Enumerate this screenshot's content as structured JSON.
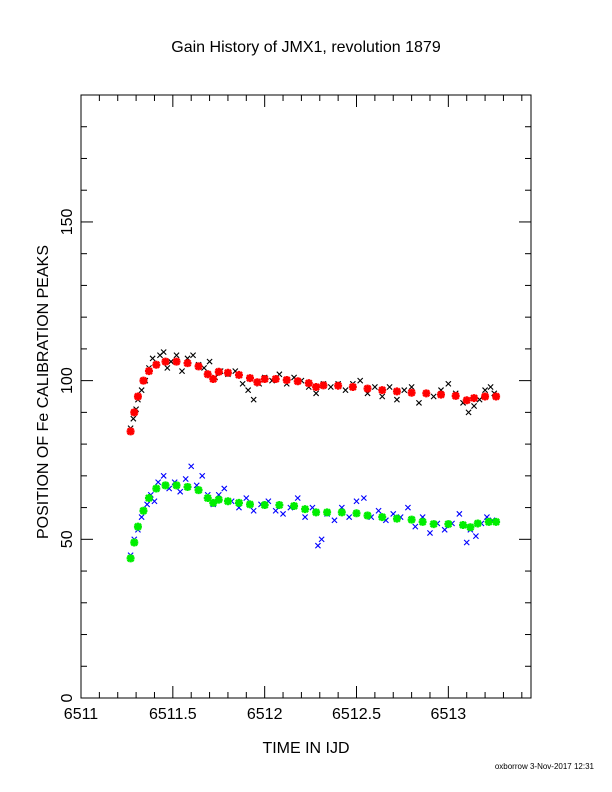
{
  "footer": "oxborrow 3-Nov-2017 12:31",
  "chart_data": {
    "type": "scatter",
    "title": "Gain History of JMX1, revolution 1879",
    "xlabel": "TIME IN IJD",
    "ylabel": "POSITION OF Fe CALIBRATION PEAKS",
    "xlim": [
      6511,
      6513.45
    ],
    "ylim": [
      0,
      190
    ],
    "xticks": [
      6511,
      6511.5,
      6512,
      6512.5,
      6513
    ],
    "xtick_labels": [
      "6511",
      "6511.5",
      "6512",
      "6512.5",
      "6513"
    ],
    "yticks": [
      0,
      50,
      100,
      150
    ],
    "ytick_labels": [
      "0",
      "50",
      "100",
      "150"
    ],
    "grid": false,
    "series": [
      {
        "marker": "x",
        "color": "#000000",
        "kind": "measured",
        "points": [
          [
            6511.27,
            85
          ],
          [
            6511.285,
            88
          ],
          [
            6511.3,
            91
          ],
          [
            6511.31,
            94
          ],
          [
            6511.33,
            97
          ],
          [
            6511.35,
            100
          ],
          [
            6511.37,
            104
          ],
          [
            6511.39,
            107
          ],
          [
            6511.41,
            105
          ],
          [
            6511.43,
            108
          ],
          [
            6511.45,
            109
          ],
          [
            6511.47,
            104
          ],
          [
            6511.49,
            106
          ],
          [
            6511.52,
            108
          ],
          [
            6511.55,
            103
          ],
          [
            6511.58,
            107
          ],
          [
            6511.61,
            108
          ],
          [
            6511.64,
            105
          ],
          [
            6511.67,
            104
          ],
          [
            6511.7,
            106
          ],
          [
            6511.73,
            101
          ],
          [
            6511.76,
            103
          ],
          [
            6511.8,
            102
          ],
          [
            6511.84,
            103
          ],
          [
            6511.88,
            99
          ],
          [
            6511.91,
            97
          ],
          [
            6511.94,
            94
          ],
          [
            6511.97,
            99
          ],
          [
            6512.0,
            101
          ],
          [
            6512.04,
            100
          ],
          [
            6512.08,
            102
          ],
          [
            6512.12,
            99
          ],
          [
            6512.16,
            101
          ],
          [
            6512.2,
            100
          ],
          [
            6512.24,
            98
          ],
          [
            6512.28,
            96
          ],
          [
            6512.32,
            99
          ],
          [
            6512.36,
            98
          ],
          [
            6512.4,
            99
          ],
          [
            6512.44,
            97
          ],
          [
            6512.48,
            99
          ],
          [
            6512.52,
            100
          ],
          [
            6512.56,
            96
          ],
          [
            6512.6,
            98
          ],
          [
            6512.64,
            95
          ],
          [
            6512.68,
            98
          ],
          [
            6512.72,
            94
          ],
          [
            6512.76,
            97
          ],
          [
            6512.8,
            98
          ],
          [
            6512.84,
            93
          ],
          [
            6512.88,
            96
          ],
          [
            6512.92,
            95
          ],
          [
            6512.96,
            97
          ],
          [
            6513.0,
            99
          ],
          [
            6513.04,
            96
          ],
          [
            6513.08,
            93
          ],
          [
            6513.11,
            90
          ],
          [
            6513.14,
            92
          ],
          [
            6513.17,
            94
          ],
          [
            6513.2,
            97
          ],
          [
            6513.23,
            98
          ],
          [
            6513.25,
            96
          ]
        ]
      },
      {
        "marker": "star",
        "color": "#ff0000",
        "kind": "fit",
        "points": [
          [
            6511.27,
            84
          ],
          [
            6511.29,
            90
          ],
          [
            6511.31,
            95
          ],
          [
            6511.34,
            100
          ],
          [
            6511.37,
            103
          ],
          [
            6511.41,
            105
          ],
          [
            6511.46,
            106
          ],
          [
            6511.52,
            106
          ],
          [
            6511.58,
            105.5
          ],
          [
            6511.64,
            104.5
          ],
          [
            6511.69,
            102
          ],
          [
            6511.72,
            100.5
          ],
          [
            6511.75,
            102.8
          ],
          [
            6511.8,
            102.5
          ],
          [
            6511.86,
            101.8
          ],
          [
            6511.92,
            100.8
          ],
          [
            6511.96,
            99.5
          ],
          [
            6512.0,
            100.5
          ],
          [
            6512.06,
            100.5
          ],
          [
            6512.12,
            100.2
          ],
          [
            6512.18,
            99.8
          ],
          [
            6512.24,
            99.2
          ],
          [
            6512.28,
            98
          ],
          [
            6512.32,
            98.5
          ],
          [
            6512.4,
            98.4
          ],
          [
            6512.48,
            98
          ],
          [
            6512.56,
            97.5
          ],
          [
            6512.64,
            97
          ],
          [
            6512.72,
            96.6
          ],
          [
            6512.8,
            96.2
          ],
          [
            6512.88,
            96
          ],
          [
            6512.96,
            95.6
          ],
          [
            6513.04,
            95.2
          ],
          [
            6513.1,
            93.8
          ],
          [
            6513.14,
            94.5
          ],
          [
            6513.2,
            95
          ],
          [
            6513.26,
            95
          ]
        ]
      },
      {
        "marker": "x",
        "color": "#0000ff",
        "kind": "measured",
        "points": [
          [
            6511.27,
            45
          ],
          [
            6511.29,
            50
          ],
          [
            6511.31,
            53
          ],
          [
            6511.33,
            57
          ],
          [
            6511.36,
            61
          ],
          [
            6511.38,
            64
          ],
          [
            6511.4,
            62
          ],
          [
            6511.42,
            68
          ],
          [
            6511.45,
            70
          ],
          [
            6511.48,
            66
          ],
          [
            6511.51,
            68
          ],
          [
            6511.54,
            65
          ],
          [
            6511.57,
            69
          ],
          [
            6511.6,
            73
          ],
          [
            6511.63,
            67
          ],
          [
            6511.66,
            70
          ],
          [
            6511.69,
            64
          ],
          [
            6511.72,
            61
          ],
          [
            6511.75,
            64
          ],
          [
            6511.78,
            66
          ],
          [
            6511.82,
            62
          ],
          [
            6511.86,
            60
          ],
          [
            6511.9,
            63
          ],
          [
            6511.94,
            59
          ],
          [
            6511.98,
            61
          ],
          [
            6512.02,
            62
          ],
          [
            6512.06,
            59
          ],
          [
            6512.1,
            58
          ],
          [
            6512.14,
            60
          ],
          [
            6512.18,
            63
          ],
          [
            6512.22,
            57
          ],
          [
            6512.26,
            60
          ],
          [
            6512.29,
            48
          ],
          [
            6512.31,
            50
          ],
          [
            6512.34,
            58
          ],
          [
            6512.38,
            56
          ],
          [
            6512.42,
            60
          ],
          [
            6512.46,
            57
          ],
          [
            6512.5,
            62
          ],
          [
            6512.54,
            63
          ],
          [
            6512.58,
            57
          ],
          [
            6512.62,
            59
          ],
          [
            6512.66,
            56
          ],
          [
            6512.7,
            58
          ],
          [
            6512.74,
            57
          ],
          [
            6512.78,
            60
          ],
          [
            6512.82,
            54
          ],
          [
            6512.86,
            57
          ],
          [
            6512.9,
            52
          ],
          [
            6512.94,
            55
          ],
          [
            6512.98,
            53
          ],
          [
            6513.02,
            55
          ],
          [
            6513.06,
            58
          ],
          [
            6513.1,
            49
          ],
          [
            6513.12,
            53
          ],
          [
            6513.15,
            51
          ],
          [
            6513.18,
            55
          ],
          [
            6513.21,
            57
          ],
          [
            6513.24,
            56
          ]
        ]
      },
      {
        "marker": "star",
        "color": "#00ee00",
        "kind": "fit",
        "points": [
          [
            6511.27,
            44
          ],
          [
            6511.29,
            49
          ],
          [
            6511.31,
            54
          ],
          [
            6511.34,
            59
          ],
          [
            6511.37,
            63
          ],
          [
            6511.41,
            66
          ],
          [
            6511.46,
            67
          ],
          [
            6511.52,
            67
          ],
          [
            6511.58,
            66.5
          ],
          [
            6511.64,
            65.5
          ],
          [
            6511.69,
            63
          ],
          [
            6511.72,
            61.5
          ],
          [
            6511.75,
            62.5
          ],
          [
            6511.8,
            62
          ],
          [
            6511.86,
            61.5
          ],
          [
            6511.92,
            61
          ],
          [
            6512.0,
            60.8
          ],
          [
            6512.08,
            60.8
          ],
          [
            6512.16,
            60.5
          ],
          [
            6512.22,
            59.5
          ],
          [
            6512.28,
            58.5
          ],
          [
            6512.34,
            58.5
          ],
          [
            6512.42,
            58.5
          ],
          [
            6512.5,
            58.2
          ],
          [
            6512.56,
            57.5
          ],
          [
            6512.64,
            57
          ],
          [
            6512.72,
            56.5
          ],
          [
            6512.8,
            56.2
          ],
          [
            6512.86,
            55.5
          ],
          [
            6512.92,
            54.8
          ],
          [
            6513.0,
            54.8
          ],
          [
            6513.08,
            54.5
          ],
          [
            6513.12,
            53.8
          ],
          [
            6513.16,
            55
          ],
          [
            6513.22,
            55.5
          ],
          [
            6513.26,
            55.5
          ]
        ]
      }
    ]
  }
}
